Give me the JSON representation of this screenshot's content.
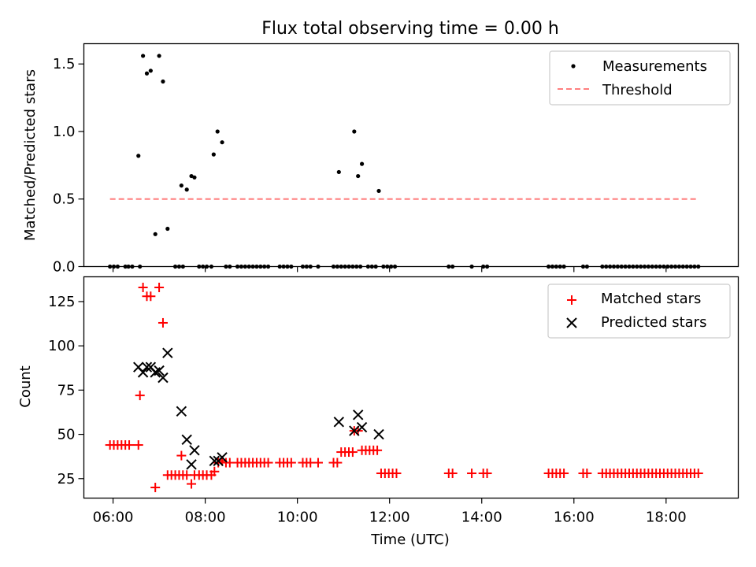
{
  "figure_title": "Flux total observing time = 0.00 h",
  "chart_data": [
    {
      "type": "scatter",
      "title": "Flux total observing time = 0.00 h",
      "xlabel": "",
      "ylabel": "Matched/Predicted stars",
      "xlim": [
        "05:22",
        "19:34"
      ],
      "ylim": [
        0,
        1.65
      ],
      "yticks": [
        0.0,
        0.5,
        1.0,
        1.5
      ],
      "ytick_labels": [
        "0.0",
        "0.5",
        "1.0",
        "1.5"
      ],
      "xticks": [
        "06:00",
        "08:00",
        "10:00",
        "12:00",
        "14:00",
        "16:00",
        "18:00"
      ],
      "show_x_tick_labels": false,
      "grid": false,
      "legend": {
        "placement": "upper right",
        "entries": [
          "Measurements",
          "Threshold"
        ]
      },
      "series": [
        {
          "name": "Measurements",
          "kind": "points",
          "color": "#000000",
          "points": [
            [
              "05:56",
              0
            ],
            [
              "06:01",
              0
            ],
            [
              "06:06",
              0
            ],
            [
              "06:16",
              0
            ],
            [
              "06:20",
              0
            ],
            [
              "06:25",
              0
            ],
            [
              "06:35",
              0
            ],
            [
              "06:33",
              0.82
            ],
            [
              "06:39",
              1.56
            ],
            [
              "06:44",
              1.43
            ],
            [
              "06:49",
              1.45
            ],
            [
              "06:55",
              0.24
            ],
            [
              "07:00",
              1.56
            ],
            [
              "07:05",
              1.37
            ],
            [
              "07:11",
              0.28
            ],
            [
              "07:21",
              0
            ],
            [
              "07:26",
              0
            ],
            [
              "07:31",
              0
            ],
            [
              "07:29",
              0.6
            ],
            [
              "07:36",
              0.57
            ],
            [
              "07:42",
              0.67
            ],
            [
              "07:46",
              0.66
            ],
            [
              "07:52",
              0
            ],
            [
              "07:57",
              0
            ],
            [
              "08:02",
              0
            ],
            [
              "08:08",
              0
            ],
            [
              "08:11",
              0.83
            ],
            [
              "08:16",
              1.0
            ],
            [
              "08:22",
              0.92
            ],
            [
              "08:27",
              0
            ],
            [
              "08:32",
              0
            ],
            [
              "08:42",
              0
            ],
            [
              "08:47",
              0
            ],
            [
              "08:52",
              0
            ],
            [
              "08:57",
              0
            ],
            [
              "09:02",
              0
            ],
            [
              "09:07",
              0
            ],
            [
              "09:12",
              0
            ],
            [
              "09:17",
              0
            ],
            [
              "09:22",
              0
            ],
            [
              "09:37",
              0
            ],
            [
              "09:42",
              0
            ],
            [
              "09:47",
              0
            ],
            [
              "09:52",
              0
            ],
            [
              "10:07",
              0
            ],
            [
              "10:12",
              0
            ],
            [
              "10:17",
              0
            ],
            [
              "10:27",
              0
            ],
            [
              "10:47",
              0
            ],
            [
              "10:52",
              0
            ],
            [
              "10:54",
              0.7
            ],
            [
              "10:57",
              0
            ],
            [
              "11:02",
              0
            ],
            [
              "11:07",
              0
            ],
            [
              "11:12",
              0
            ],
            [
              "11:17",
              0
            ],
            [
              "11:22",
              0
            ],
            [
              "11:14",
              1.0
            ],
            [
              "11:19",
              0.67
            ],
            [
              "11:24",
              0.76
            ],
            [
              "11:32",
              0
            ],
            [
              "11:37",
              0
            ],
            [
              "11:42",
              0
            ],
            [
              "11:46",
              0.56
            ],
            [
              "11:52",
              0
            ],
            [
              "11:57",
              0
            ],
            [
              "12:02",
              0
            ],
            [
              "12:07",
              0
            ],
            [
              "13:17",
              0
            ],
            [
              "13:22",
              0
            ],
            [
              "13:47",
              0
            ],
            [
              "14:02",
              0
            ],
            [
              "14:07",
              0
            ],
            [
              "15:27",
              0
            ],
            [
              "15:32",
              0
            ],
            [
              "15:37",
              0
            ],
            [
              "15:42",
              0
            ],
            [
              "15:47",
              0
            ],
            [
              "16:12",
              0
            ],
            [
              "16:17",
              0
            ],
            [
              "16:37",
              0
            ],
            [
              "16:42",
              0
            ],
            [
              "16:47",
              0
            ],
            [
              "16:52",
              0
            ],
            [
              "16:57",
              0
            ],
            [
              "17:02",
              0
            ],
            [
              "17:07",
              0
            ],
            [
              "17:12",
              0
            ],
            [
              "17:17",
              0
            ],
            [
              "17:22",
              0
            ],
            [
              "17:27",
              0
            ],
            [
              "17:32",
              0
            ],
            [
              "17:37",
              0
            ],
            [
              "17:42",
              0
            ],
            [
              "17:47",
              0
            ],
            [
              "17:52",
              0
            ],
            [
              "17:57",
              0
            ],
            [
              "18:02",
              0
            ],
            [
              "18:07",
              0
            ],
            [
              "18:12",
              0
            ],
            [
              "18:17",
              0
            ],
            [
              "18:22",
              0
            ],
            [
              "18:27",
              0
            ],
            [
              "18:32",
              0
            ],
            [
              "18:37",
              0
            ],
            [
              "18:42",
              0
            ]
          ]
        },
        {
          "name": "Threshold",
          "kind": "dashed-line",
          "color": "#ff7f7f",
          "points": [
            [
              "05:56",
              0.5
            ],
            [
              "18:42",
              0.5
            ]
          ]
        }
      ]
    },
    {
      "type": "scatter",
      "title": "",
      "xlabel": "Time (UTC)",
      "ylabel": "Count",
      "xlim": [
        "05:22",
        "19:34"
      ],
      "ylim": [
        14,
        139
      ],
      "yticks": [
        25,
        50,
        75,
        100,
        125
      ],
      "ytick_labels": [
        "25",
        "50",
        "75",
        "100",
        "125"
      ],
      "xticks": [
        "06:00",
        "08:00",
        "10:00",
        "12:00",
        "14:00",
        "16:00",
        "18:00"
      ],
      "xtick_labels": [
        "06:00",
        "08:00",
        "10:00",
        "12:00",
        "14:00",
        "16:00",
        "18:00"
      ],
      "show_x_tick_labels": true,
      "grid": false,
      "legend": {
        "placement": "upper right",
        "entries": [
          "Matched stars",
          "Predicted stars"
        ]
      },
      "series": [
        {
          "name": "Matched stars",
          "kind": "plus",
          "color": "#ff0000",
          "points": [
            [
              "05:56",
              44
            ],
            [
              "06:01",
              44
            ],
            [
              "06:06",
              44
            ],
            [
              "06:11",
              44
            ],
            [
              "06:16",
              44
            ],
            [
              "06:21",
              44
            ],
            [
              "06:33",
              44
            ],
            [
              "06:35",
              72
            ],
            [
              "06:39",
              133
            ],
            [
              "06:44",
              128
            ],
            [
              "06:49",
              128
            ],
            [
              "06:55",
              20
            ],
            [
              "07:00",
              133
            ],
            [
              "07:05",
              113
            ],
            [
              "07:11",
              27
            ],
            [
              "07:16",
              27
            ],
            [
              "07:21",
              27
            ],
            [
              "07:26",
              27
            ],
            [
              "07:31",
              27
            ],
            [
              "07:29",
              38
            ],
            [
              "07:36",
              27
            ],
            [
              "07:42",
              22
            ],
            [
              "07:46",
              27
            ],
            [
              "07:52",
              27
            ],
            [
              "07:57",
              27
            ],
            [
              "08:02",
              27
            ],
            [
              "08:08",
              27
            ],
            [
              "08:12",
              29
            ],
            [
              "08:17",
              34
            ],
            [
              "08:22",
              35
            ],
            [
              "08:27",
              34
            ],
            [
              "08:32",
              34
            ],
            [
              "08:42",
              34
            ],
            [
              "08:47",
              34
            ],
            [
              "08:52",
              34
            ],
            [
              "08:57",
              34
            ],
            [
              "09:02",
              34
            ],
            [
              "09:07",
              34
            ],
            [
              "09:12",
              34
            ],
            [
              "09:17",
              34
            ],
            [
              "09:22",
              34
            ],
            [
              "09:37",
              34
            ],
            [
              "09:42",
              34
            ],
            [
              "09:47",
              34
            ],
            [
              "09:52",
              34
            ],
            [
              "10:07",
              34
            ],
            [
              "10:12",
              34
            ],
            [
              "10:17",
              34
            ],
            [
              "10:27",
              34
            ],
            [
              "10:47",
              34
            ],
            [
              "10:52",
              34
            ],
            [
              "10:57",
              40
            ],
            [
              "11:02",
              40
            ],
            [
              "11:07",
              40
            ],
            [
              "11:12",
              40
            ],
            [
              "11:14",
              52
            ],
            [
              "11:19",
              52
            ],
            [
              "11:24",
              41
            ],
            [
              "11:29",
              41
            ],
            [
              "11:34",
              41
            ],
            [
              "11:39",
              41
            ],
            [
              "11:44",
              41
            ],
            [
              "11:49",
              28
            ],
            [
              "11:54",
              28
            ],
            [
              "11:59",
              28
            ],
            [
              "12:04",
              28
            ],
            [
              "12:09",
              28
            ],
            [
              "13:17",
              28
            ],
            [
              "13:22",
              28
            ],
            [
              "13:47",
              28
            ],
            [
              "14:02",
              28
            ],
            [
              "14:07",
              28
            ],
            [
              "15:27",
              28
            ],
            [
              "15:32",
              28
            ],
            [
              "15:37",
              28
            ],
            [
              "15:42",
              28
            ],
            [
              "15:47",
              28
            ],
            [
              "16:12",
              28
            ],
            [
              "16:17",
              28
            ],
            [
              "16:37",
              28
            ],
            [
              "16:42",
              28
            ],
            [
              "16:47",
              28
            ],
            [
              "16:52",
              28
            ],
            [
              "16:57",
              28
            ],
            [
              "17:02",
              28
            ],
            [
              "17:07",
              28
            ],
            [
              "17:12",
              28
            ],
            [
              "17:17",
              28
            ],
            [
              "17:22",
              28
            ],
            [
              "17:27",
              28
            ],
            [
              "17:32",
              28
            ],
            [
              "17:37",
              28
            ],
            [
              "17:42",
              28
            ],
            [
              "17:47",
              28
            ],
            [
              "17:52",
              28
            ],
            [
              "17:57",
              28
            ],
            [
              "18:02",
              28
            ],
            [
              "18:07",
              28
            ],
            [
              "18:12",
              28
            ],
            [
              "18:17",
              28
            ],
            [
              "18:22",
              28
            ],
            [
              "18:27",
              28
            ],
            [
              "18:32",
              28
            ],
            [
              "18:37",
              28
            ],
            [
              "18:42",
              28
            ]
          ]
        },
        {
          "name": "Predicted stars",
          "kind": "x",
          "color": "#000000",
          "points": [
            [
              "06:33",
              88
            ],
            [
              "06:39",
              85
            ],
            [
              "06:44",
              88
            ],
            [
              "06:49",
              88
            ],
            [
              "06:55",
              85
            ],
            [
              "07:00",
              86
            ],
            [
              "07:05",
              82
            ],
            [
              "07:11",
              96
            ],
            [
              "07:29",
              63
            ],
            [
              "07:36",
              47
            ],
            [
              "07:42",
              33
            ],
            [
              "07:46",
              41
            ],
            [
              "08:12",
              35
            ],
            [
              "08:17",
              35
            ],
            [
              "08:22",
              37
            ],
            [
              "10:54",
              57
            ],
            [
              "11:14",
              52
            ],
            [
              "11:19",
              61
            ],
            [
              "11:24",
              54
            ],
            [
              "11:46",
              50
            ]
          ]
        }
      ]
    }
  ]
}
